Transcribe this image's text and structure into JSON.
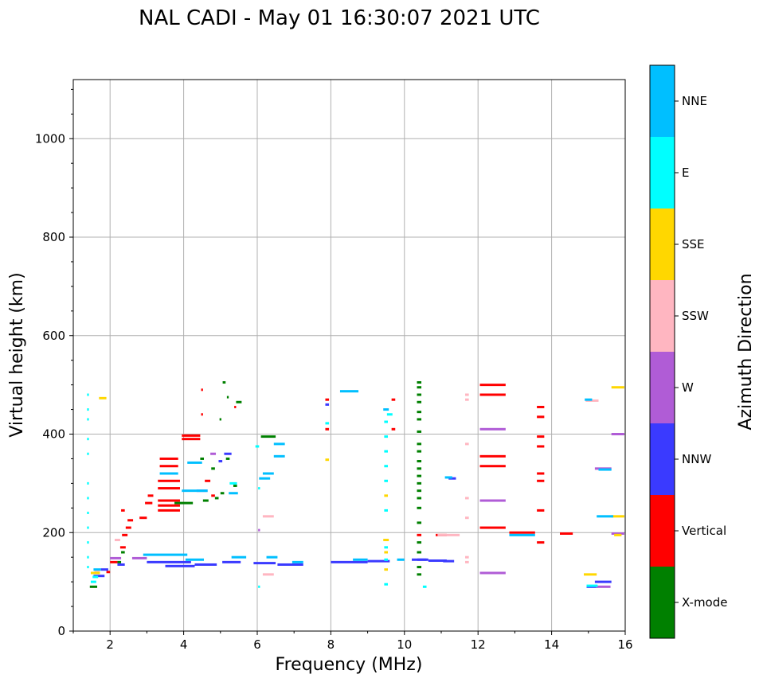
{
  "chart_data": {
    "type": "scatter",
    "title": "NAL CADI - May 01 16:30:07 2021 UTC",
    "xlabel": "Frequency (MHz)",
    "ylabel": "Virtual height (km)",
    "xlim": [
      1,
      16
    ],
    "ylim": [
      0,
      1120
    ],
    "xticks": [
      2,
      4,
      6,
      8,
      10,
      12,
      14,
      16
    ],
    "yticks": [
      0,
      200,
      400,
      600,
      800,
      1000
    ],
    "grid": true,
    "colorbar": {
      "label": "Azimuth Direction",
      "categories": [
        {
          "name": "X-mode",
          "color": "#008000"
        },
        {
          "name": "Vertical",
          "color": "#ff0000"
        },
        {
          "name": "NNW",
          "color": "#3a3aff"
        },
        {
          "name": "W",
          "color": "#b05cd6"
        },
        {
          "name": "SSW",
          "color": "#ffb6c1"
        },
        {
          "name": "SSE",
          "color": "#ffd700"
        },
        {
          "name": "E",
          "color": "#00ffff"
        },
        {
          "name": "NNE",
          "color": "#00bfff"
        }
      ]
    },
    "series": [
      {
        "name": "X-mode",
        "points": [
          [
            1.55,
            90,
            0.2
          ],
          [
            2.25,
            140,
            0.1
          ],
          [
            2.35,
            160,
            0.1
          ],
          [
            4.0,
            260,
            0.5
          ],
          [
            4.6,
            265,
            0.15
          ],
          [
            4.9,
            270,
            0.1
          ],
          [
            5.05,
            280,
            0.1
          ],
          [
            5.4,
            295,
            0.1
          ],
          [
            5.1,
            505,
            0.08
          ],
          [
            5.5,
            465,
            0.15
          ],
          [
            5.2,
            350,
            0.1
          ],
          [
            4.8,
            330,
            0.1
          ],
          [
            6.3,
            395,
            0.4
          ],
          [
            4.5,
            350,
            0.1
          ],
          [
            5.0,
            430,
            0.05
          ],
          [
            5.2,
            475,
            0.05
          ],
          [
            10.4,
            115,
            0.12
          ],
          [
            10.4,
            130,
            0.12
          ],
          [
            10.4,
            160,
            0.12
          ],
          [
            10.4,
            180,
            0.12
          ],
          [
            10.4,
            220,
            0.12
          ],
          [
            10.4,
            250,
            0.12
          ],
          [
            10.4,
            270,
            0.12
          ],
          [
            10.4,
            285,
            0.12
          ],
          [
            10.4,
            300,
            0.12
          ],
          [
            10.4,
            315,
            0.12
          ],
          [
            10.4,
            330,
            0.12
          ],
          [
            10.4,
            345,
            0.12
          ],
          [
            10.4,
            365,
            0.12
          ],
          [
            10.4,
            380,
            0.12
          ],
          [
            10.4,
            405,
            0.12
          ],
          [
            10.4,
            430,
            0.12
          ],
          [
            10.4,
            445,
            0.12
          ],
          [
            10.4,
            465,
            0.12
          ],
          [
            10.4,
            480,
            0.12
          ],
          [
            10.4,
            495,
            0.12
          ],
          [
            10.4,
            505,
            0.12
          ]
        ]
      },
      {
        "name": "Vertical",
        "points": [
          [
            1.95,
            120,
            0.1
          ],
          [
            2.1,
            140,
            0.2
          ],
          [
            2.35,
            170,
            0.15
          ],
          [
            2.4,
            195,
            0.15
          ],
          [
            2.5,
            210,
            0.15
          ],
          [
            2.55,
            225,
            0.15
          ],
          [
            2.35,
            245,
            0.1
          ],
          [
            2.9,
            230,
            0.2
          ],
          [
            3.05,
            260,
            0.2
          ],
          [
            3.1,
            275,
            0.15
          ],
          [
            3.6,
            245,
            0.6
          ],
          [
            3.6,
            255,
            0.6
          ],
          [
            3.6,
            265,
            0.6
          ],
          [
            3.6,
            290,
            0.6
          ],
          [
            3.6,
            305,
            0.6
          ],
          [
            3.6,
            335,
            0.5
          ],
          [
            3.6,
            350,
            0.5
          ],
          [
            4.2,
            390,
            0.5
          ],
          [
            4.2,
            397,
            0.5
          ],
          [
            4.65,
            305,
            0.15
          ],
          [
            4.8,
            275,
            0.1
          ],
          [
            4.5,
            490,
            0.05
          ],
          [
            4.5,
            440,
            0.05
          ],
          [
            5.4,
            455,
            0.05
          ],
          [
            7.9,
            470,
            0.1
          ],
          [
            7.9,
            410,
            0.1
          ],
          [
            9.7,
            470,
            0.1
          ],
          [
            9.7,
            410,
            0.1
          ],
          [
            10.4,
            195,
            0.12
          ],
          [
            11.0,
            195,
            0.3
          ],
          [
            12.4,
            500,
            0.7
          ],
          [
            12.4,
            480,
            0.7
          ],
          [
            12.4,
            355,
            0.7
          ],
          [
            12.4,
            335,
            0.7
          ],
          [
            12.4,
            210,
            0.7
          ],
          [
            13.2,
            200,
            0.7
          ],
          [
            13.7,
            455,
            0.2
          ],
          [
            13.7,
            435,
            0.2
          ],
          [
            13.7,
            395,
            0.2
          ],
          [
            13.7,
            375,
            0.2
          ],
          [
            13.7,
            320,
            0.2
          ],
          [
            13.7,
            305,
            0.2
          ],
          [
            13.7,
            245,
            0.2
          ],
          [
            13.7,
            180,
            0.2
          ],
          [
            14.4,
            198,
            0.35
          ]
        ]
      },
      {
        "name": "NNW",
        "points": [
          [
            1.7,
            112,
            0.3
          ],
          [
            1.85,
            125,
            0.2
          ],
          [
            2.3,
            135,
            0.2
          ],
          [
            3.6,
            140,
            1.2
          ],
          [
            3.9,
            132,
            0.8
          ],
          [
            4.6,
            135,
            0.6
          ],
          [
            5.3,
            140,
            0.5
          ],
          [
            6.2,
            138,
            0.6
          ],
          [
            6.9,
            135,
            0.7
          ],
          [
            8.5,
            140,
            1.0
          ],
          [
            9.3,
            142,
            0.6
          ],
          [
            10.4,
            145,
            0.4
          ],
          [
            10.9,
            143,
            0.5
          ],
          [
            11.2,
            142,
            0.3
          ],
          [
            4.5,
            285,
            0.3
          ],
          [
            5.0,
            345,
            0.1
          ],
          [
            5.2,
            360,
            0.2
          ],
          [
            7.9,
            460,
            0.1
          ],
          [
            11.3,
            310,
            0.2
          ],
          [
            15.4,
            100,
            0.45
          ],
          [
            15.1,
            90,
            0.3
          ],
          [
            10.5,
            145,
            0.3
          ]
        ]
      },
      {
        "name": "W",
        "points": [
          [
            2.15,
            148,
            0.3
          ],
          [
            2.8,
            148,
            0.4
          ],
          [
            4.8,
            360,
            0.15
          ],
          [
            6.05,
            205,
            0.05
          ],
          [
            12.4,
            410,
            0.7
          ],
          [
            12.4,
            265,
            0.7
          ],
          [
            12.4,
            118,
            0.7
          ],
          [
            15.4,
            90,
            0.4
          ],
          [
            15.8,
            400,
            0.35
          ],
          [
            15.8,
            198,
            0.35
          ],
          [
            15.4,
            330,
            0.45
          ]
        ]
      },
      {
        "name": "SSW",
        "points": [
          [
            1.65,
            120,
            0.15
          ],
          [
            2.2,
            185,
            0.15
          ],
          [
            6.3,
            115,
            0.3
          ],
          [
            6.3,
            233,
            0.3
          ],
          [
            11.2,
            195,
            0.6
          ],
          [
            11.7,
            480,
            0.1
          ],
          [
            11.7,
            470,
            0.1
          ],
          [
            11.7,
            380,
            0.1
          ],
          [
            11.7,
            270,
            0.1
          ],
          [
            11.7,
            230,
            0.1
          ],
          [
            11.7,
            150,
            0.1
          ],
          [
            11.7,
            140,
            0.1
          ],
          [
            15.1,
            468,
            0.35
          ]
        ]
      },
      {
        "name": "SSE",
        "points": [
          [
            1.6,
            118,
            0.25
          ],
          [
            1.8,
            473,
            0.2
          ],
          [
            7.9,
            348,
            0.1
          ],
          [
            9.5,
            185,
            0.15
          ],
          [
            9.5,
            160,
            0.1
          ],
          [
            9.5,
            125,
            0.1
          ],
          [
            9.5,
            275,
            0.1
          ],
          [
            15.05,
            115,
            0.35
          ],
          [
            15.8,
            495,
            0.35
          ],
          [
            15.8,
            233,
            0.35
          ],
          [
            15.8,
            195,
            0.2
          ]
        ]
      },
      {
        "name": "E",
        "points": [
          [
            1.4,
            480,
            0.05
          ],
          [
            1.4,
            450,
            0.05
          ],
          [
            1.4,
            430,
            0.05
          ],
          [
            1.4,
            390,
            0.05
          ],
          [
            1.4,
            360,
            0.05
          ],
          [
            1.4,
            300,
            0.05
          ],
          [
            1.4,
            270,
            0.05
          ],
          [
            1.4,
            240,
            0.05
          ],
          [
            1.4,
            210,
            0.05
          ],
          [
            1.4,
            180,
            0.05
          ],
          [
            1.4,
            150,
            0.05
          ],
          [
            1.4,
            130,
            0.05
          ],
          [
            1.55,
            100,
            0.15
          ],
          [
            1.6,
            110,
            0.15
          ],
          [
            5.35,
            300,
            0.2
          ],
          [
            6.05,
            290,
            0.05
          ],
          [
            6.0,
            375,
            0.1
          ],
          [
            6.05,
            90,
            0.05
          ],
          [
            7.9,
            422,
            0.1
          ],
          [
            9.6,
            440,
            0.15
          ],
          [
            9.5,
            425,
            0.1
          ],
          [
            9.5,
            395,
            0.1
          ],
          [
            9.5,
            365,
            0.1
          ],
          [
            9.5,
            335,
            0.1
          ],
          [
            9.5,
            305,
            0.1
          ],
          [
            9.5,
            245,
            0.1
          ],
          [
            9.5,
            170,
            0.1
          ],
          [
            9.5,
            95,
            0.1
          ],
          [
            9.5,
            145,
            0.1
          ],
          [
            10.55,
            90,
            0.1
          ],
          [
            15.1,
            92,
            0.3
          ]
        ]
      },
      {
        "name": "NNE",
        "points": [
          [
            1.65,
            125,
            0.2
          ],
          [
            3.5,
            155,
            1.2
          ],
          [
            4.3,
            145,
            0.5
          ],
          [
            5.5,
            150,
            0.4
          ],
          [
            6.4,
            150,
            0.3
          ],
          [
            7.1,
            140,
            0.3
          ],
          [
            8.8,
            145,
            0.4
          ],
          [
            9.9,
            145,
            0.2
          ],
          [
            3.6,
            320,
            0.5
          ],
          [
            4.3,
            342,
            0.4
          ],
          [
            4.3,
            285,
            0.7
          ],
          [
            5.35,
            280,
            0.25
          ],
          [
            6.3,
            320,
            0.3
          ],
          [
            6.2,
            310,
            0.3
          ],
          [
            6.6,
            380,
            0.3
          ],
          [
            6.6,
            355,
            0.3
          ],
          [
            8.5,
            487,
            0.5
          ],
          [
            9.5,
            450,
            0.15
          ],
          [
            11.2,
            312,
            0.2
          ],
          [
            13.2,
            195,
            0.7
          ],
          [
            15.45,
            233,
            0.45
          ],
          [
            15.45,
            328,
            0.35
          ],
          [
            15.0,
            470,
            0.2
          ]
        ]
      }
    ]
  }
}
